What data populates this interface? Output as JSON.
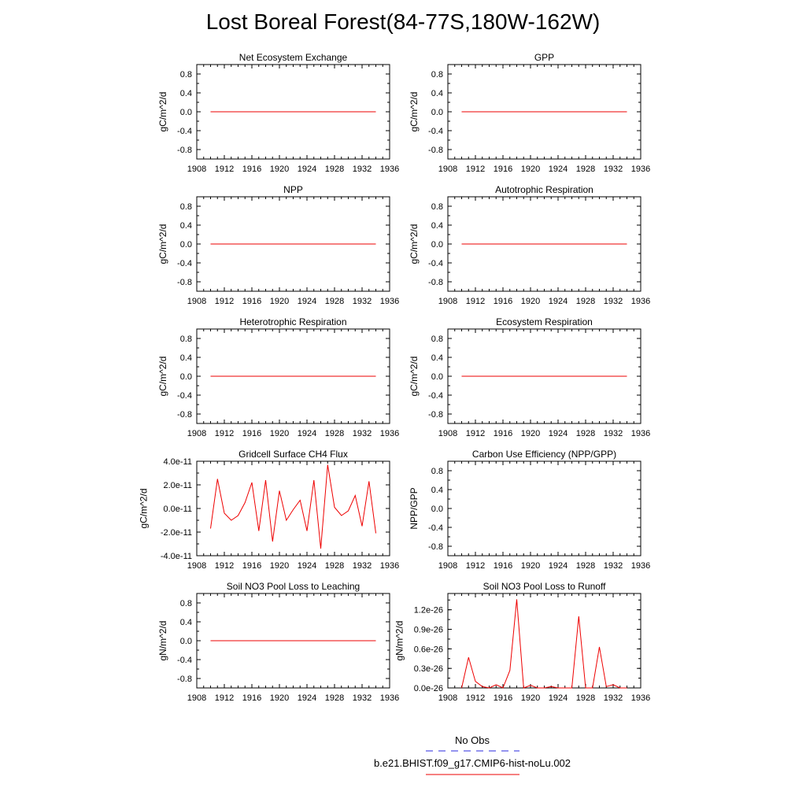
{
  "title": "Lost Boreal Forest(84-77S,180W-162W)",
  "colors": {
    "model": "#ee0000",
    "obs": "#2a2adf",
    "axis": "#000000"
  },
  "legend": {
    "obs_label": "No Obs",
    "model_label": "b.e21.BHIST.f09_g17.CMIP6-hist-noLu.002"
  },
  "chart_data": [
    {
      "type": "line",
      "title": "Net Ecosystem Exchange",
      "ylabel": "gC/m^2/d",
      "xlim": [
        1908,
        1936
      ],
      "ylim": [
        -1,
        1
      ],
      "xticks": [
        "1908",
        "1912",
        "1916",
        "1920",
        "1924",
        "1928",
        "1932",
        "1936"
      ],
      "xtick_values": [
        1908,
        1912,
        1916,
        1920,
        1924,
        1928,
        1932,
        1936
      ],
      "yticks": [
        "0.8",
        "0.4",
        "0.0",
        "-0.4",
        "-0.8"
      ],
      "ytick_values": [
        0.8,
        0.4,
        0,
        -0.4,
        -0.8
      ],
      "x": [
        1910,
        1934
      ],
      "values": [
        0,
        0
      ]
    },
    {
      "type": "line",
      "title": "GPP",
      "ylabel": "gC/m^2/d",
      "xlim": [
        1908,
        1936
      ],
      "ylim": [
        -1,
        1
      ],
      "xticks": [
        "1908",
        "1912",
        "1916",
        "1920",
        "1924",
        "1928",
        "1932",
        "1936"
      ],
      "xtick_values": [
        1908,
        1912,
        1916,
        1920,
        1924,
        1928,
        1932,
        1936
      ],
      "yticks": [
        "0.8",
        "0.4",
        "0.0",
        "-0.4",
        "-0.8"
      ],
      "ytick_values": [
        0.8,
        0.4,
        0,
        -0.4,
        -0.8
      ],
      "x": [
        1910,
        1934
      ],
      "values": [
        0,
        0
      ]
    },
    {
      "type": "line",
      "title": "NPP",
      "ylabel": "gC/m^2/d",
      "xlim": [
        1908,
        1936
      ],
      "ylim": [
        -1,
        1
      ],
      "xticks": [
        "1908",
        "1912",
        "1916",
        "1920",
        "1924",
        "1928",
        "1932",
        "1936"
      ],
      "xtick_values": [
        1908,
        1912,
        1916,
        1920,
        1924,
        1928,
        1932,
        1936
      ],
      "yticks": [
        "0.8",
        "0.4",
        "0.0",
        "-0.4",
        "-0.8"
      ],
      "ytick_values": [
        0.8,
        0.4,
        0,
        -0.4,
        -0.8
      ],
      "x": [
        1910,
        1934
      ],
      "values": [
        0,
        0
      ]
    },
    {
      "type": "line",
      "title": "Autotrophic Respiration",
      "ylabel": "gC/m^2/d",
      "xlim": [
        1908,
        1936
      ],
      "ylim": [
        -1,
        1
      ],
      "xticks": [
        "1908",
        "1912",
        "1916",
        "1920",
        "1924",
        "1928",
        "1932",
        "1936"
      ],
      "xtick_values": [
        1908,
        1912,
        1916,
        1920,
        1924,
        1928,
        1932,
        1936
      ],
      "yticks": [
        "0.8",
        "0.4",
        "0.0",
        "-0.4",
        "-0.8"
      ],
      "ytick_values": [
        0.8,
        0.4,
        0,
        -0.4,
        -0.8
      ],
      "x": [
        1910,
        1934
      ],
      "values": [
        0,
        0
      ]
    },
    {
      "type": "line",
      "title": "Heterotrophic Respiration",
      "ylabel": "gC/m^2/d",
      "xlim": [
        1908,
        1936
      ],
      "ylim": [
        -1,
        1
      ],
      "xticks": [
        "1908",
        "1912",
        "1916",
        "1920",
        "1924",
        "1928",
        "1932",
        "1936"
      ],
      "xtick_values": [
        1908,
        1912,
        1916,
        1920,
        1924,
        1928,
        1932,
        1936
      ],
      "yticks": [
        "0.8",
        "0.4",
        "0.0",
        "-0.4",
        "-0.8"
      ],
      "ytick_values": [
        0.8,
        0.4,
        0,
        -0.4,
        -0.8
      ],
      "x": [
        1910,
        1934
      ],
      "values": [
        0,
        0
      ]
    },
    {
      "type": "line",
      "title": "Ecosystem Respiration",
      "ylabel": "gC/m^2/d",
      "xlim": [
        1908,
        1936
      ],
      "ylim": [
        -1,
        1
      ],
      "xticks": [
        "1908",
        "1912",
        "1916",
        "1920",
        "1924",
        "1928",
        "1932",
        "1936"
      ],
      "xtick_values": [
        1908,
        1912,
        1916,
        1920,
        1924,
        1928,
        1932,
        1936
      ],
      "yticks": [
        "0.8",
        "0.4",
        "0.0",
        "-0.4",
        "-0.8"
      ],
      "ytick_values": [
        0.8,
        0.4,
        0,
        -0.4,
        -0.8
      ],
      "x": [
        1910,
        1934
      ],
      "values": [
        0,
        0
      ]
    },
    {
      "type": "line",
      "title": "Gridcell Surface CH4 Flux",
      "ylabel": "gC/m^2/d",
      "xlim": [
        1908,
        1936
      ],
      "ylim": [
        -4e-11,
        4e-11
      ],
      "xticks": [
        "1908",
        "1912",
        "1916",
        "1920",
        "1924",
        "1928",
        "1932",
        "1936"
      ],
      "xtick_values": [
        1908,
        1912,
        1916,
        1920,
        1924,
        1928,
        1932,
        1936
      ],
      "yticks": [
        "4.0e-11",
        "2.0e-11",
        "0.0e-11",
        "-2.0e-11",
        "-4.0e-11"
      ],
      "ytick_values": [
        4e-11,
        2e-11,
        0,
        -2e-11,
        -4e-11
      ],
      "x": [
        1910,
        1911,
        1912,
        1913,
        1914,
        1915,
        1916,
        1917,
        1918,
        1919,
        1920,
        1921,
        1922,
        1923,
        1924,
        1925,
        1926,
        1927,
        1928,
        1929,
        1930,
        1931,
        1932,
        1933,
        1934
      ],
      "values": [
        -1.7e-11,
        2.5e-11,
        -4e-12,
        -1e-11,
        -6e-12,
        5e-12,
        2.2e-11,
        -1.9e-11,
        2.4e-11,
        -2.8e-11,
        1.5e-11,
        -1e-11,
        -1e-12,
        7e-12,
        -1.9e-11,
        2.4e-11,
        -3.4e-11,
        3.7e-11,
        1e-12,
        -6e-12,
        -2e-12,
        1.1e-11,
        -1.5e-11,
        2.3e-11,
        -2.1e-11
      ]
    },
    {
      "type": "line",
      "title": "Carbon Use Efficiency (NPP/GPP)",
      "ylabel": "NPP/GPP",
      "xlim": [
        1908,
        1936
      ],
      "ylim": [
        -1,
        1
      ],
      "xticks": [
        "1908",
        "1912",
        "1916",
        "1920",
        "1924",
        "1928",
        "1932",
        "1936"
      ],
      "xtick_values": [
        1908,
        1912,
        1916,
        1920,
        1924,
        1928,
        1932,
        1936
      ],
      "yticks": [
        "0.8",
        "0.4",
        "0.0",
        "-0.4",
        "-0.8"
      ],
      "ytick_values": [
        0.8,
        0.4,
        0,
        -0.4,
        -0.8
      ],
      "x": [],
      "values": []
    },
    {
      "type": "line",
      "title": "Soil NO3 Pool Loss to Leaching",
      "ylabel": "gN/m^2/d",
      "xlim": [
        1908,
        1936
      ],
      "ylim": [
        -1,
        1
      ],
      "xticks": [
        "1908",
        "1912",
        "1916",
        "1920",
        "1924",
        "1928",
        "1932",
        "1936"
      ],
      "xtick_values": [
        1908,
        1912,
        1916,
        1920,
        1924,
        1928,
        1932,
        1936
      ],
      "yticks": [
        "0.8",
        "0.4",
        "0.0",
        "-0.4",
        "-0.8"
      ],
      "ytick_values": [
        0.8,
        0.4,
        0,
        -0.4,
        -0.8
      ],
      "x": [
        1910,
        1934
      ],
      "values": [
        0,
        0
      ]
    },
    {
      "type": "line",
      "title": "Soil NO3 Pool Loss to Runoff",
      "ylabel": "gN/m^2/d",
      "xlim": [
        1908,
        1936
      ],
      "ylim": [
        0,
        1.45e-26
      ],
      "xticks": [
        "1908",
        "1912",
        "1916",
        "1920",
        "1924",
        "1928",
        "1932",
        "1936"
      ],
      "xtick_values": [
        1908,
        1912,
        1916,
        1920,
        1924,
        1928,
        1932,
        1936
      ],
      "yticks": [
        "1.2e-26",
        "0.9e-26",
        "0.6e-26",
        "0.3e-26",
        "0.0e-26"
      ],
      "ytick_values": [
        1.2e-26,
        9e-27,
        6e-27,
        3e-27,
        0
      ],
      "x": [
        1910,
        1911,
        1912,
        1913,
        1914,
        1915,
        1916,
        1917,
        1918,
        1919,
        1920,
        1921,
        1922,
        1923,
        1924,
        1925,
        1926,
        1927,
        1928,
        1929,
        1930,
        1931,
        1932,
        1933,
        1934
      ],
      "values": [
        0,
        4.7e-27,
        1e-27,
        2e-28,
        0,
        5e-28,
        0,
        2.7e-27,
        1.36e-26,
        0,
        4e-28,
        0,
        0,
        2e-28,
        0,
        0,
        0,
        1.1e-26,
        0,
        0,
        6.3e-27,
        2e-28,
        5e-28,
        0,
        0
      ]
    }
  ]
}
